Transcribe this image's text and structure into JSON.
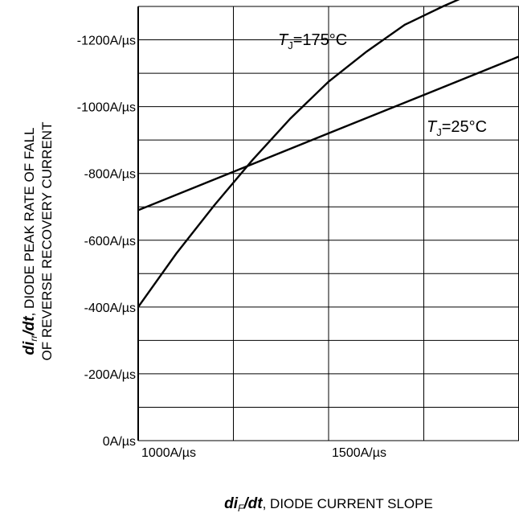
{
  "chart_data": {
    "type": "line",
    "xlabel_main": "di",
    "xlabel_sub": "F",
    "xlabel_main2": "/dt",
    "xlabel_rest": ", DIODE CURRENT SLOPE",
    "ylabel_main": "di",
    "ylabel_sub": "rr",
    "ylabel_main2": "/dt",
    "ylabel_rest": ", DIODE PEAK RATE OF FALL",
    "ylabel_line2": "OF REVERSE RECOVERY CURRENT",
    "xlim": [
      1000,
      2000
    ],
    "ylim": [
      0,
      1300
    ],
    "x_ticks": [
      {
        "value": 1000,
        "label": "1000A/µs"
      },
      {
        "value": 1500,
        "label": "1500A/µs"
      }
    ],
    "y_ticks": [
      {
        "value": 0,
        "label": "0A/µs"
      },
      {
        "value": 200,
        "label": "-200A/µs"
      },
      {
        "value": 400,
        "label": "-400A/µs"
      },
      {
        "value": 600,
        "label": "-600A/µs"
      },
      {
        "value": 800,
        "label": "-800A/µs"
      },
      {
        "value": 1000,
        "label": "-1000A/µs"
      },
      {
        "value": 1200,
        "label": "-1200A/µs"
      }
    ],
    "x_gridlines": [
      1000,
      1250,
      1500,
      1750,
      2000
    ],
    "y_gridlines": [
      0,
      100,
      200,
      300,
      400,
      500,
      600,
      700,
      800,
      900,
      1000,
      1100,
      1200,
      1300
    ],
    "series": [
      {
        "name_main": "T",
        "name_sub": "J",
        "name_rest": "=175°C",
        "x": [
          1000,
          1100,
          1200,
          1300,
          1400,
          1500,
          1600,
          1700,
          1800,
          1850
        ],
        "y": [
          400,
          560,
          705,
          840,
          965,
          1075,
          1165,
          1245,
          1300,
          1325
        ]
      },
      {
        "name_main": "T",
        "name_sub": "J",
        "name_rest": "=25°C",
        "x": [
          1000,
          1250,
          1500,
          1750,
          2000
        ],
        "y": [
          690,
          805,
          920,
          1035,
          1150
        ]
      }
    ],
    "grid": true,
    "legend": "none"
  }
}
